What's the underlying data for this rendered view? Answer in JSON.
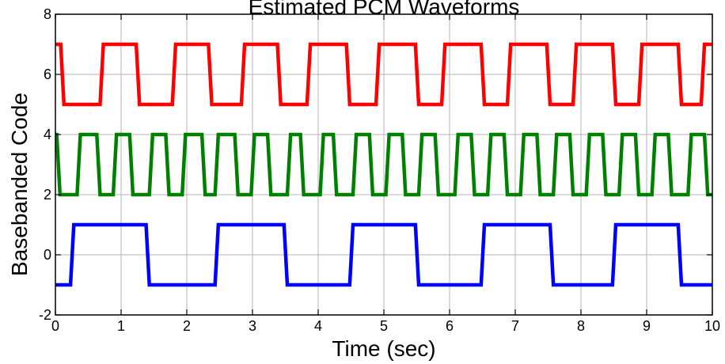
{
  "chart_data": {
    "type": "line",
    "title": "Estimated PCM Waveforms",
    "xlabel": "Time (sec)",
    "ylabel": "Basebanded Code",
    "xlim": [
      0,
      10
    ],
    "ylim": [
      -2,
      8
    ],
    "xticks": [
      "0",
      "1",
      "2",
      "3",
      "4",
      "5",
      "6",
      "7",
      "8",
      "9",
      "10"
    ],
    "yticks": [
      "-2",
      "0",
      "2",
      "4",
      "6",
      "8"
    ],
    "grid": true,
    "series": [
      {
        "color": "#ff0000",
        "x": [
          0.0,
          0.08,
          0.13,
          0.68,
          0.73,
          1.23,
          1.28,
          1.78,
          1.83,
          2.33,
          2.38,
          2.83,
          2.88,
          3.38,
          3.43,
          3.83,
          3.88,
          4.43,
          4.48,
          4.88,
          4.93,
          5.48,
          5.53,
          5.88,
          5.93,
          6.48,
          6.53,
          6.88,
          6.93,
          7.48,
          7.53,
          7.88,
          7.93,
          8.48,
          8.53,
          8.88,
          8.93,
          9.48,
          9.53,
          9.83,
          9.88,
          10.0
        ],
        "y": [
          7,
          7,
          5,
          5,
          7,
          7,
          5,
          5,
          7,
          7,
          5,
          5,
          7,
          7,
          5,
          5,
          7,
          7,
          5,
          5,
          7,
          7,
          5,
          5,
          7,
          7,
          5,
          5,
          7,
          7,
          5,
          5,
          7,
          7,
          5,
          5,
          7,
          7,
          5,
          5,
          7,
          7
        ]
      },
      {
        "color": "#008000",
        "x": [
          0.0,
          0.02,
          0.07,
          0.33,
          0.38,
          0.63,
          0.68,
          0.88,
          0.93,
          1.13,
          1.18,
          1.43,
          1.48,
          1.68,
          1.73,
          1.93,
          1.98,
          2.23,
          2.28,
          2.43,
          2.48,
          2.73,
          2.78,
          2.98,
          3.03,
          3.23,
          3.28,
          3.53,
          3.58,
          3.73,
          3.78,
          4.03,
          4.08,
          4.23,
          4.28,
          4.53,
          4.58,
          4.78,
          4.83,
          5.03,
          5.08,
          5.28,
          5.33,
          5.53,
          5.58,
          5.78,
          5.83,
          6.08,
          6.13,
          6.33,
          6.38,
          6.58,
          6.63,
          6.83,
          6.88,
          7.08,
          7.13,
          7.33,
          7.38,
          7.58,
          7.63,
          7.83,
          7.88,
          8.08,
          8.13,
          8.33,
          8.38,
          8.58,
          8.63,
          8.83,
          8.88,
          9.08,
          9.13,
          9.33,
          9.38,
          9.63,
          9.68,
          9.88,
          9.93,
          10.0
        ],
        "y": [
          4,
          4,
          2,
          2,
          4,
          4,
          2,
          2,
          4,
          4,
          2,
          2,
          4,
          4,
          2,
          2,
          4,
          4,
          2,
          2,
          4,
          4,
          2,
          2,
          4,
          4,
          2,
          2,
          4,
          4,
          2,
          2,
          4,
          4,
          2,
          2,
          4,
          4,
          2,
          2,
          4,
          4,
          2,
          2,
          4,
          4,
          2,
          2,
          4,
          4,
          2,
          2,
          4,
          4,
          2,
          2,
          4,
          4,
          2,
          2,
          4,
          4,
          2,
          2,
          4,
          4,
          2,
          2,
          4,
          4,
          2,
          2,
          4,
          4,
          2,
          2,
          4,
          4,
          2,
          2
        ]
      },
      {
        "color": "#0000ff",
        "x": [
          0.0,
          0.23,
          0.28,
          1.38,
          1.43,
          2.43,
          2.48,
          3.48,
          3.53,
          4.48,
          4.53,
          5.48,
          5.53,
          6.48,
          6.53,
          7.53,
          7.58,
          8.48,
          8.53,
          9.48,
          9.53,
          10.0
        ],
        "y": [
          -1,
          -1,
          1,
          1,
          -1,
          -1,
          1,
          1,
          -1,
          -1,
          1,
          1,
          -1,
          -1,
          1,
          1,
          -1,
          -1,
          1,
          1,
          -1,
          -1
        ]
      }
    ]
  }
}
